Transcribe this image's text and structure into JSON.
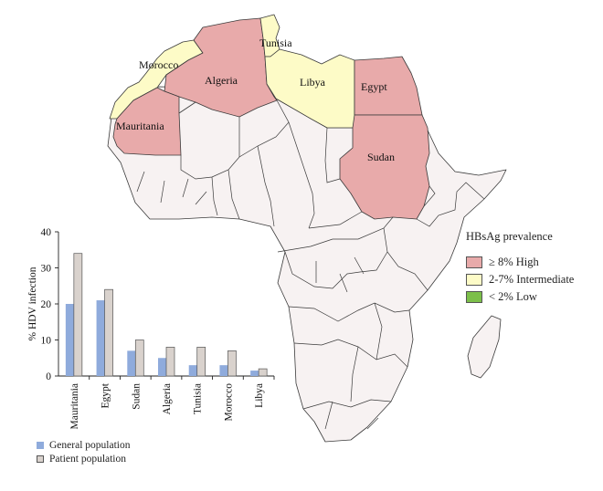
{
  "colors": {
    "high": "#e8aaaa",
    "intermediate": "#fdfbc7",
    "low": "#7cbf4a",
    "other": "#f7f2f2",
    "general": "#8fabdc",
    "patient": "#d9d2cd"
  },
  "map": {
    "labels": {
      "morocco": "Morocco",
      "algeria": "Algeria",
      "tunisia": "Tunisia",
      "libya": "Libya",
      "egypt": "Egypt",
      "mauritania": "Mauritania",
      "sudan": "Sudan"
    }
  },
  "legend": {
    "title": "HBsAg prevalence",
    "items": [
      {
        "label": "≥ 8% High",
        "color_key": "high"
      },
      {
        "label": "2-7% Intermediate",
        "color_key": "intermediate"
      },
      {
        "label": "< 2% Low",
        "color_key": "low"
      }
    ]
  },
  "chart_data": {
    "type": "bar",
    "categories": [
      "Mauritania",
      "Egypt",
      "Sudan",
      "Algeria",
      "Tunisia",
      "Morocco",
      "Libya"
    ],
    "series": [
      {
        "name": "General population",
        "values": [
          20,
          21,
          7,
          5,
          3,
          3,
          1.5
        ]
      },
      {
        "name": "Patient population",
        "values": [
          34,
          24,
          10,
          8,
          8,
          7,
          2
        ]
      }
    ],
    "ylabel": "% HDV infection",
    "xlabel": "",
    "ylim": [
      0,
      40
    ],
    "yticks": [
      0,
      10,
      20,
      30,
      40
    ],
    "grid": false,
    "legend_position": "bottom-left"
  }
}
